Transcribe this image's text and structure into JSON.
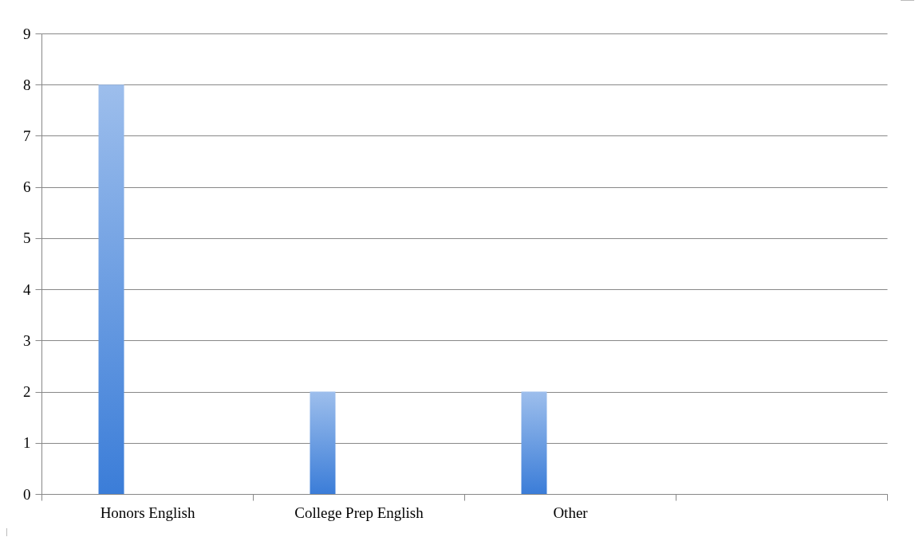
{
  "chart_data": {
    "type": "bar",
    "categories": [
      "Honors English",
      "College Prep English",
      "Other",
      null
    ],
    "values": [
      8,
      2,
      2,
      null
    ],
    "color": "#3b7dd8",
    "ylim": [
      0,
      9
    ],
    "yticks": [
      0,
      1,
      2,
      3,
      4,
      5,
      6,
      7,
      8,
      9
    ],
    "grid": "y"
  }
}
